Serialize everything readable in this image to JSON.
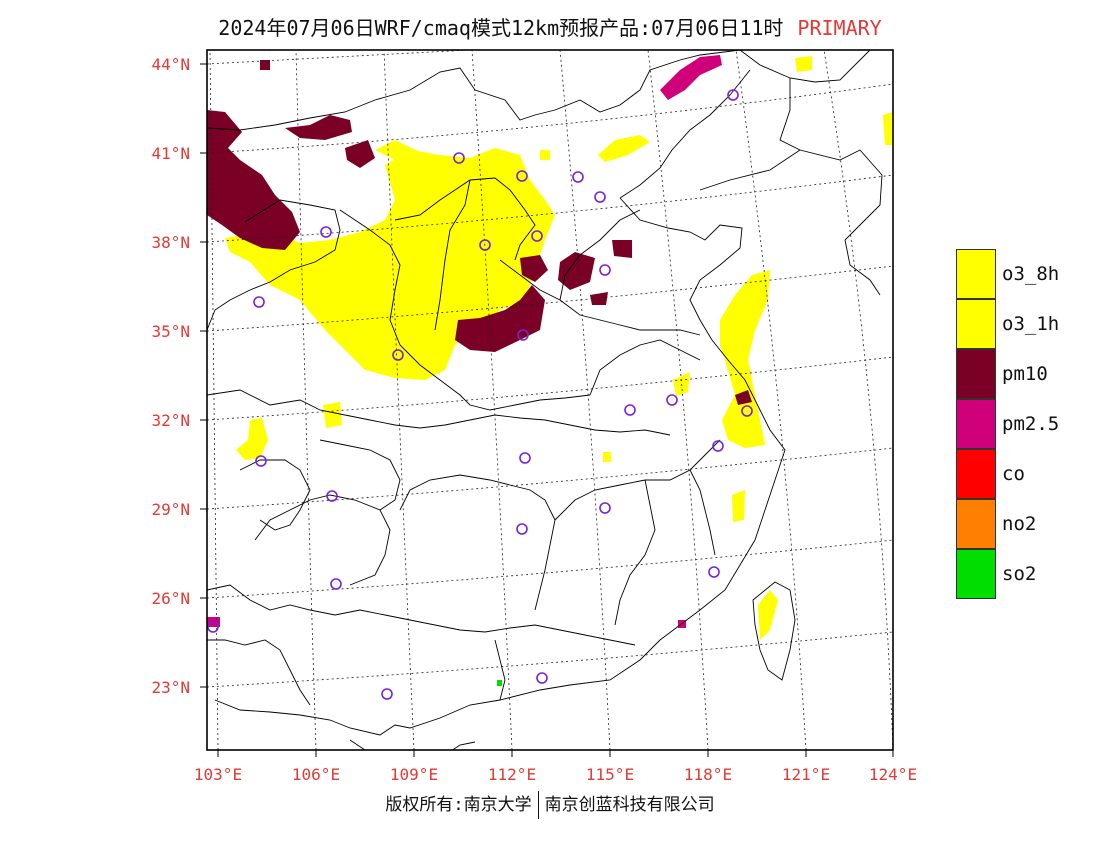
{
  "title": {
    "main": "2024年07月06日WRF/cmaq模式12km预报产品:07月06日11时",
    "tag": "PRIMARY"
  },
  "lat_labels": [
    "44°N",
    "41°N",
    "38°N",
    "35°N",
    "32°N",
    "29°N",
    "26°N",
    "23°N"
  ],
  "lon_labels": [
    "103°E",
    "106°E",
    "109°E",
    "112°E",
    "115°E",
    "118°E",
    "121°E",
    "124°E"
  ],
  "legend": [
    {
      "label": "o3_8h",
      "color": "#ffff00"
    },
    {
      "label": "o3_1h",
      "color": "#ffff00"
    },
    {
      "label": "pm10",
      "color": "#7a0026"
    },
    {
      "label": "pm2.5",
      "color": "#d0007a"
    },
    {
      "label": "co",
      "color": "#ff0000"
    },
    {
      "label": "no2",
      "color": "#ff7f00"
    },
    {
      "label": "so2",
      "color": "#00dd00"
    }
  ],
  "footer": {
    "left": "版权所有:南京大学",
    "right": "南京创蓝科技有限公司"
  },
  "colors": {
    "accent": "#e53935",
    "o3": "#ffff00",
    "pm10": "#7a0026",
    "pm25": "#d0007a",
    "station": "#7a22d8"
  }
}
